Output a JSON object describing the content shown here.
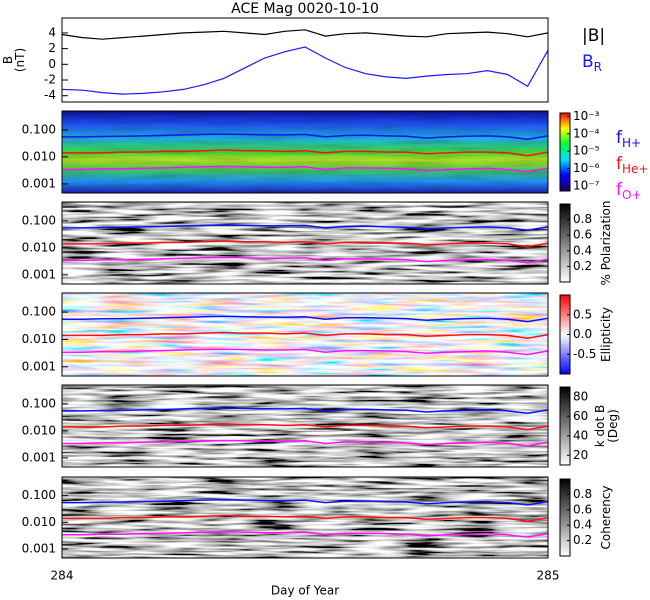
{
  "chart_data": {
    "type": "stack",
    "title": "ACE Mag 0020-10-10",
    "x_label": "Day of Year",
    "xlim": [
      284,
      285
    ],
    "xticks": [
      284,
      285
    ],
    "x": [
      284,
      284.042,
      284.083,
      284.125,
      284.167,
      284.208,
      284.25,
      284.292,
      284.333,
      284.375,
      284.417,
      284.458,
      284.5,
      284.542,
      284.583,
      284.625,
      284.667,
      284.708,
      284.75,
      284.792,
      284.833,
      284.875,
      284.917,
      284.958,
      285
    ],
    "field": {
      "type": "line",
      "y_label": [
        "B",
        "(nT)"
      ],
      "ylim": [
        -4.8,
        5.9
      ],
      "yticks": [
        -4,
        -2,
        0,
        2,
        4
      ],
      "series": [
        {
          "name": "|B|",
          "color": "#000000",
          "values": [
            3.8,
            3.4,
            3.2,
            3.4,
            3.6,
            3.8,
            4.0,
            4.1,
            4.2,
            4.0,
            3.8,
            4.2,
            4.4,
            3.6,
            3.9,
            4.0,
            3.8,
            3.6,
            3.5,
            3.9,
            4.0,
            4.1,
            3.9,
            3.5,
            4.0
          ]
        },
        {
          "name": "BR",
          "color": "#1a1aff",
          "values": [
            -3.2,
            -3.3,
            -3.6,
            -3.8,
            -3.7,
            -3.5,
            -3.2,
            -2.6,
            -1.8,
            -0.5,
            0.8,
            1.6,
            2.2,
            0.8,
            -0.4,
            -1.2,
            -1.6,
            -1.8,
            -1.5,
            -1.3,
            -1.2,
            -0.8,
            -1.3,
            -2.8,
            1.8
          ]
        }
      ]
    },
    "frequencies": {
      "log": true,
      "ylim": [
        0.00046,
        0.5
      ],
      "yticks": [
        {
          "value": 0.001,
          "label": "0.001"
        },
        {
          "value": 0.01,
          "label": "0.010"
        },
        {
          "value": 0.1,
          "label": "0.100"
        }
      ],
      "series": [
        {
          "name": "fH+",
          "color": "#1010ff",
          "values": [
            0.055,
            0.055,
            0.057,
            0.058,
            0.06,
            0.062,
            0.065,
            0.068,
            0.07,
            0.068,
            0.066,
            0.065,
            0.068,
            0.055,
            0.062,
            0.063,
            0.06,
            0.058,
            0.05,
            0.055,
            0.058,
            0.06,
            0.055,
            0.045,
            0.06
          ]
        },
        {
          "name": "fHe+",
          "color": "#ff1010",
          "values": [
            0.014,
            0.014,
            0.014,
            0.015,
            0.015,
            0.016,
            0.016,
            0.017,
            0.018,
            0.017,
            0.017,
            0.016,
            0.017,
            0.014,
            0.016,
            0.016,
            0.015,
            0.015,
            0.013,
            0.014,
            0.015,
            0.015,
            0.014,
            0.011,
            0.015
          ]
        },
        {
          "name": "fO+",
          "color": "#ff10ff",
          "values": [
            0.0034,
            0.0034,
            0.0036,
            0.0036,
            0.0038,
            0.0039,
            0.0041,
            0.0043,
            0.0044,
            0.0043,
            0.0041,
            0.0041,
            0.0043,
            0.0034,
            0.0039,
            0.0039,
            0.0038,
            0.0036,
            0.0031,
            0.0034,
            0.0036,
            0.0038,
            0.0034,
            0.0028,
            0.0038
          ]
        }
      ]
    },
    "panels": [
      {
        "type": "spectrogram",
        "colormap": "rainbow",
        "clim": [
          -7.3,
          -2.8
        ],
        "cticks": [
          {
            "value": -3,
            "label": "10⁻³"
          },
          {
            "value": -4,
            "label": "10⁻⁴"
          },
          {
            "value": -5,
            "label": "10⁻⁵"
          },
          {
            "value": -6,
            "label": "10⁻⁶"
          },
          {
            "value": -7,
            "label": "10⁻⁷"
          }
        ]
      },
      {
        "type": "spectrogram",
        "colormap": "gray",
        "colorbar_label": [
          "% Polarization"
        ],
        "clim": [
          0,
          1
        ],
        "cticks": [
          0.2,
          0.4,
          0.6,
          0.8
        ]
      },
      {
        "type": "spectrogram",
        "colormap": "bwr",
        "colorbar_label": [
          "Ellipticity"
        ],
        "clim": [
          -1,
          1
        ],
        "cticks": [
          -0.5,
          {
            "value": 0,
            "label": "0.0"
          },
          0.5
        ]
      },
      {
        "type": "spectrogram",
        "colormap": "gray",
        "colorbar_label": [
          "k dot B",
          "(Deg)"
        ],
        "clim": [
          10,
          90
        ],
        "cticks": [
          20,
          40,
          60,
          80
        ]
      },
      {
        "type": "spectrogram",
        "colormap": "gray",
        "colorbar_label": [
          "Coherency"
        ],
        "clim": [
          0,
          1
        ],
        "cticks": [
          0.2,
          0.4,
          0.6,
          0.8
        ]
      }
    ]
  }
}
